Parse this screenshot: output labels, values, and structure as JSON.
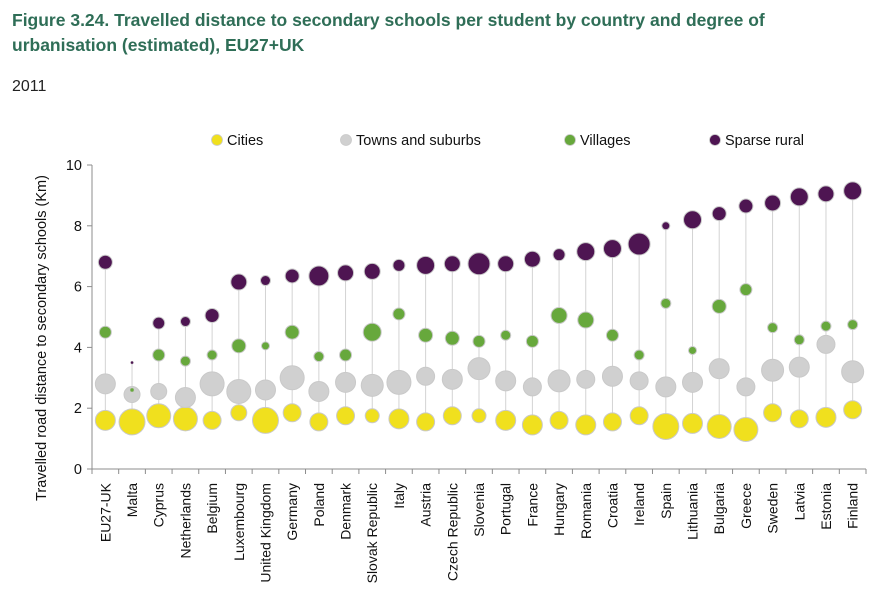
{
  "title": "Figure 3.24. Travelled distance to secondary schools per student by country and degree of urbanisation (estimated), EU27+UK",
  "subtitle": "2011",
  "colors": {
    "cities": "#f0e01e",
    "towns": "#d0d0d0",
    "villages": "#67a83c",
    "sparse_rural": "#4e1552",
    "bubble_outline": "#c9c9c9",
    "axis": "#8c8c8c",
    "guide": "#d3d3d3"
  },
  "chart_data": {
    "type": "scatter",
    "ylabel": "Travelled road distance to secondary schools (Km)",
    "ylim": [
      0,
      10
    ],
    "yticks": [
      0,
      2,
      4,
      6,
      8,
      10
    ],
    "grid": false,
    "legend_position": "top",
    "categories": [
      "EU27-UK",
      "Malta",
      "Cyprus",
      "Netherlands",
      "Belgium",
      "Luxembourg",
      "United Kingdom",
      "Germany",
      "Poland",
      "Denmark",
      "Slovak Republic",
      "Italy",
      "Austria",
      "Czech Republic",
      "Slovenia",
      "Portugal",
      "France",
      "Hungary",
      "Romania",
      "Croatia",
      "Ireland",
      "Spain",
      "Lithuania",
      "Bulgaria",
      "Greece",
      "Sweden",
      "Latvia",
      "Estonia",
      "Finland"
    ],
    "series": [
      {
        "name": "Cities",
        "key": "cities",
        "values": [
          1.6,
          1.55,
          1.75,
          1.65,
          1.6,
          1.85,
          1.6,
          1.85,
          1.55,
          1.75,
          1.75,
          1.65,
          1.55,
          1.75,
          1.75,
          1.6,
          1.45,
          1.6,
          1.45,
          1.55,
          1.75,
          1.4,
          1.5,
          1.4,
          1.3,
          1.85,
          1.65,
          1.7,
          1.95
        ],
        "sizes": [
          10,
          13,
          12,
          12,
          9,
          8,
          13,
          9,
          9,
          9,
          7,
          10,
          9,
          9,
          7,
          10,
          10,
          9,
          10,
          9,
          9,
          13,
          10,
          12,
          12,
          9,
          9,
          10,
          9
        ]
      },
      {
        "name": "Towns and suburbs",
        "key": "towns",
        "values": [
          2.8,
          2.45,
          2.55,
          2.35,
          2.8,
          2.55,
          2.6,
          3.0,
          2.55,
          2.85,
          2.75,
          2.85,
          3.05,
          2.95,
          3.3,
          2.9,
          2.7,
          2.9,
          2.95,
          3.05,
          2.9,
          2.7,
          2.85,
          3.3,
          2.7,
          3.25,
          3.35,
          4.1,
          3.2
        ]
      },
      {
        "name": "Villages",
        "key": "villages",
        "values": [
          4.5,
          2.6,
          3.75,
          3.55,
          3.75,
          4.05,
          4.05,
          4.5,
          3.7,
          3.75,
          4.5,
          5.1,
          4.4,
          4.3,
          4.2,
          4.4,
          4.2,
          5.05,
          4.9,
          4.4,
          3.75,
          5.45,
          3.9,
          5.35,
          5.9,
          4.65,
          4.25,
          4.7,
          4.75
        ],
        "sizes": [
          6,
          2,
          6,
          5,
          5,
          7,
          4,
          7,
          5,
          6,
          9,
          6,
          7,
          7,
          6,
          5,
          6,
          8,
          8,
          6,
          5,
          5,
          4,
          7,
          6,
          5,
          5,
          5,
          5
        ]
      },
      {
        "name": "Sparse rural",
        "key": "sparse_rural",
        "values": [
          6.8,
          3.5,
          4.8,
          4.85,
          5.05,
          6.15,
          6.2,
          6.35,
          6.35,
          6.45,
          6.5,
          6.7,
          6.7,
          6.75,
          6.75,
          6.75,
          6.9,
          7.05,
          7.15,
          7.25,
          7.4,
          8.0,
          8.2,
          8.4,
          8.65,
          8.75,
          8.95,
          9.05,
          9.15
        ],
        "sizes": [
          7,
          1.5,
          6,
          5,
          7,
          8,
          5,
          7,
          10,
          8,
          8,
          6,
          9,
          8,
          11,
          8,
          8,
          6,
          9,
          9,
          11,
          4,
          9,
          7,
          7,
          8,
          9,
          8,
          9
        ]
      }
    ]
  }
}
